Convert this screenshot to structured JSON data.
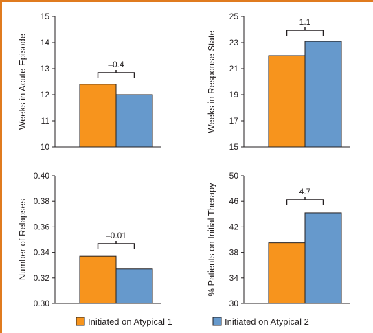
{
  "chart_data": [
    {
      "type": "bar",
      "ylabel": "Weeks in Acute Episode",
      "ylim": [
        10,
        15
      ],
      "yticks": [
        "10",
        "11",
        "12",
        "13",
        "14",
        "15"
      ],
      "series": [
        {
          "name": "Initiated on Atypical 1",
          "value": 12.4
        },
        {
          "name": "Initiated on Atypical 2",
          "value": 12.0
        }
      ],
      "annotation": "–0.4"
    },
    {
      "type": "bar",
      "ylabel": "Weeks in Response State",
      "ylim": [
        15,
        25
      ],
      "yticks": [
        "15",
        "17",
        "19",
        "21",
        "23",
        "25"
      ],
      "series": [
        {
          "name": "Initiated on Atypical 1",
          "value": 22.0
        },
        {
          "name": "Initiated on Atypical 2",
          "value": 23.1
        }
      ],
      "annotation": "1.1"
    },
    {
      "type": "bar",
      "ylabel": "Number of Relapses",
      "ylim": [
        0.3,
        0.4
      ],
      "yticks": [
        "0.30",
        "0.32",
        "0.34",
        "0.36",
        "0.38",
        "0.40"
      ],
      "series": [
        {
          "name": "Initiated on Atypical 1",
          "value": 0.337
        },
        {
          "name": "Initiated on Atypical 2",
          "value": 0.327
        }
      ],
      "annotation": "–0.01"
    },
    {
      "type": "bar",
      "ylabel": "% Patients on Initial Therapy",
      "ylim": [
        30,
        50
      ],
      "yticks": [
        "30",
        "34",
        "38",
        "42",
        "46",
        "50"
      ],
      "series": [
        {
          "name": "Initiated on Atypical 1",
          "value": 39.5
        },
        {
          "name": "Initiated on Atypical 2",
          "value": 44.2
        }
      ],
      "annotation": "4.7"
    }
  ],
  "legend": {
    "position": "bottom",
    "items": [
      "Initiated on Atypical 1",
      "Initiated on Atypical 2"
    ]
  },
  "colors": {
    "series1": "#f7941d",
    "series2": "#6699cc",
    "accent": "#e07b1f",
    "ink": "#231f20"
  }
}
